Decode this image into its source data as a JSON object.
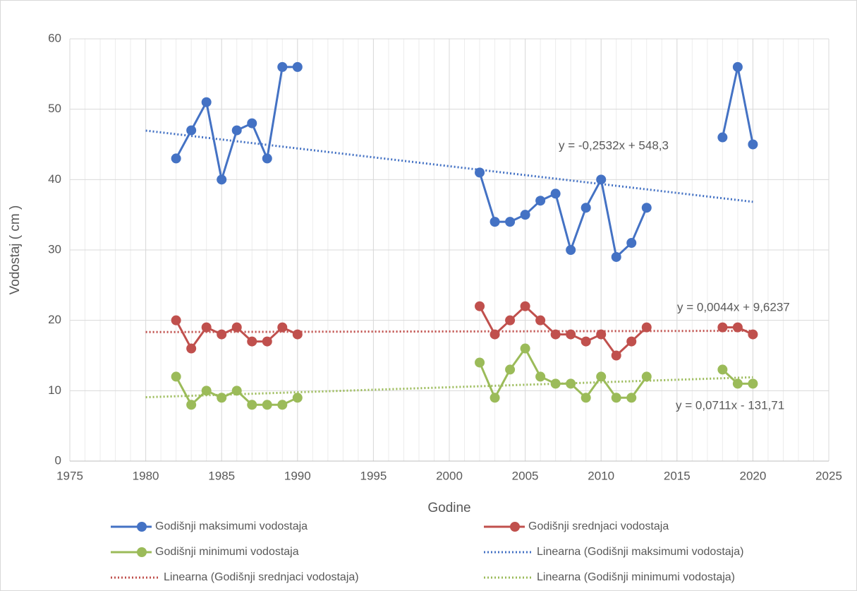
{
  "chart_data": {
    "type": "line",
    "xlabel": "Godine",
    "ylabel": "Vodostaj ( cm )",
    "x": [
      1982,
      1983,
      1984,
      1985,
      1986,
      1987,
      1988,
      1989,
      1990,
      1991,
      1992,
      1993,
      1994,
      1995,
      1996,
      1997,
      1998,
      1999,
      2000,
      2001,
      2002,
      2003,
      2004,
      2005,
      2006,
      2007,
      2008,
      2009,
      2010,
      2011,
      2012,
      2013,
      2014,
      2015,
      2016,
      2017,
      2018,
      2019,
      2020
    ],
    "series": [
      {
        "name": "Godišnji maksimumi vodostaja",
        "color": "#4472c4",
        "values": [
          43,
          47,
          51,
          40,
          47,
          48,
          43,
          56,
          56,
          null,
          null,
          null,
          null,
          null,
          null,
          null,
          null,
          null,
          null,
          null,
          41,
          34,
          34,
          35,
          37,
          38,
          30,
          36,
          40,
          29,
          31,
          36,
          null,
          null,
          null,
          null,
          46,
          56,
          45
        ]
      },
      {
        "name": "Godišnji srednjaci vodostaja",
        "color": "#c0504d",
        "values": [
          20,
          16,
          19,
          18,
          19,
          17,
          17,
          19,
          18,
          null,
          null,
          null,
          null,
          null,
          null,
          null,
          null,
          null,
          null,
          null,
          22,
          18,
          20,
          22,
          20,
          18,
          18,
          17,
          18,
          15,
          17,
          19,
          null,
          null,
          null,
          null,
          19,
          19,
          18
        ]
      },
      {
        "name": "Godišnji minimumi vodostaja",
        "color": "#9bbb59",
        "values": [
          12,
          8,
          10,
          9,
          10,
          8,
          8,
          8,
          9,
          null,
          null,
          null,
          null,
          null,
          null,
          null,
          null,
          null,
          null,
          null,
          14,
          9,
          13,
          16,
          12,
          11,
          11,
          9,
          12,
          9,
          9,
          12,
          null,
          null,
          null,
          null,
          13,
          11,
          11
        ]
      }
    ],
    "trendlines": [
      {
        "name": "Linearna (Godišnji maksimumi vodostaja)",
        "color": "#4472c4",
        "x": [
          1980,
          2020
        ],
        "values": [
          46.96,
          36.84
        ],
        "equation": "y = -0,2532x + 548,3"
      },
      {
        "name": "Linearna (Godišnji srednjaci vodostaja)",
        "color": "#c0504d",
        "x": [
          1980,
          2020
        ],
        "values": [
          18.33,
          18.51
        ],
        "equation": "y = 0,0044x + 9,6237"
      },
      {
        "name": "Linearna (Godišnji minimumi vodostaja)",
        "color": "#9bbb59",
        "x": [
          1980,
          2020
        ],
        "values": [
          9.07,
          11.91
        ],
        "equation": "y = 0,0711x - 131,71"
      }
    ],
    "xlim": [
      1975,
      2025
    ],
    "xticks": [
      1975,
      1980,
      1985,
      1990,
      1995,
      2000,
      2005,
      2010,
      2015,
      2020,
      2025
    ],
    "ylim": [
      0,
      60
    ],
    "yticks": [
      0,
      10,
      20,
      30,
      40,
      50,
      60
    ],
    "grid": true,
    "x_minor_step": 1,
    "legend": "bottom"
  }
}
